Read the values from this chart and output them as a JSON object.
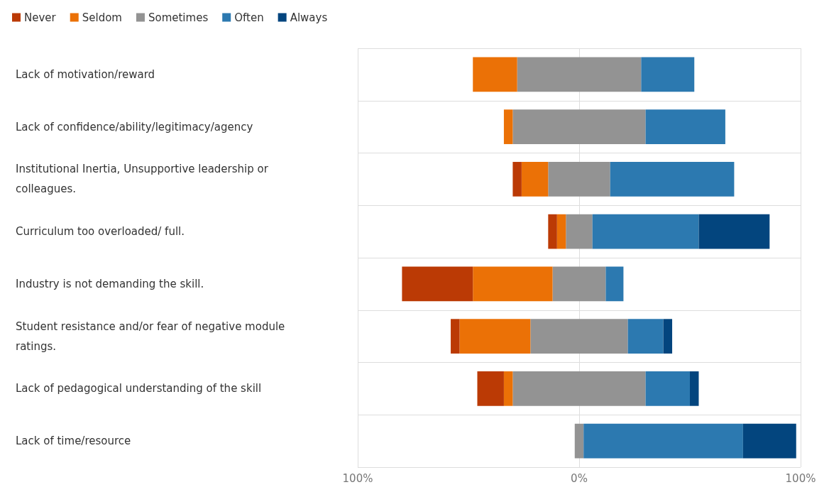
{
  "chart_data": {
    "type": "bar",
    "orientation": "horizontal",
    "stacked": true,
    "categories": [
      "Lack of motivation/reward",
      "Lack of confidence/ability/legitimacy/agency",
      "Institutional Inertia, Unsupportive leadership or colleagues.",
      "Curriculum too overloaded/ full.",
      "Industry is not demanding the skill.",
      "Student resistance and/or fear of negative module ratings.",
      "Lack of pedagogical understanding of the skill",
      "Lack of time/resource"
    ],
    "series": [
      {
        "name": "Sometimes",
        "color": "#939393",
        "values": [
          -28,
          -30,
          -14,
          -6,
          -12,
          -22,
          -30,
          -2
        ]
      },
      {
        "name": "Seldom",
        "color": "#eb7106",
        "values": [
          -20,
          -4,
          -12,
          -4,
          -36,
          -32,
          -4,
          0
        ]
      },
      {
        "name": "Never",
        "color": "#bb3a05",
        "values": [
          0,
          0,
          -4,
          -4,
          -32,
          -4,
          -12,
          0
        ]
      },
      {
        "color": "#939393",
        "values": [
          28,
          30,
          14,
          6,
          12,
          22,
          30,
          2
        ]
      },
      {
        "name": "Often",
        "color": "#2c79b0",
        "values": [
          24,
          36,
          56,
          48,
          8,
          16,
          20,
          72
        ]
      },
      {
        "name": "Always",
        "color": "#03457e",
        "values": [
          0,
          0,
          0,
          32,
          0,
          4,
          4,
          24
        ]
      }
    ],
    "xlim": [
      -100,
      100
    ],
    "xticks": [
      {
        "value": -100,
        "label": "100%"
      },
      {
        "value": 0,
        "label": "0%"
      },
      {
        "value": 100,
        "label": "100%"
      }
    ],
    "grid": true,
    "legend": "top left"
  }
}
